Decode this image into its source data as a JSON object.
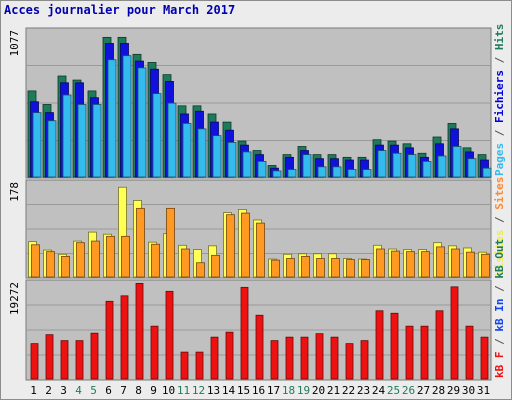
{
  "title": "Acces journalier pour March 2017",
  "chart_data": [
    {
      "type": "bar",
      "panel": "top",
      "y_tick_label": "1077",
      "ylim": [
        0,
        1077
      ],
      "grid": true,
      "categories": [
        "1",
        "2",
        "3",
        "4",
        "5",
        "6",
        "7",
        "8",
        "9",
        "10",
        "11",
        "12",
        "13",
        "14",
        "15",
        "16",
        "17",
        "18",
        "19",
        "20",
        "21",
        "22",
        "23",
        "24",
        "25",
        "26",
        "27",
        "28",
        "29",
        "30",
        "31"
      ],
      "weekend_days": [
        "4",
        "5",
        "11",
        "12",
        "18",
        "19",
        "25",
        "26"
      ],
      "axis_title": [
        {
          "text": "Pages",
          "color": "#33bbee"
        },
        {
          "text": " / ",
          "color": "#555555"
        },
        {
          "text": "Fichiers",
          "color": "#0000dd"
        },
        {
          "text": " / ",
          "color": "#555555"
        },
        {
          "text": "Hits",
          "color": "#1e7b5a"
        }
      ],
      "series": [
        {
          "color": "#1e7b5a",
          "values": [
            635,
            535,
            745,
            715,
            635,
            1030,
            1030,
            905,
            845,
            755,
            525,
            525,
            465,
            405,
            265,
            195,
            85,
            165,
            225,
            165,
            165,
            145,
            145,
            275,
            265,
            245,
            175,
            295,
            395,
            215,
            165
          ]
        },
        {
          "color": "#1111dd",
          "values": [
            555,
            475,
            695,
            695,
            585,
            985,
            985,
            855,
            795,
            705,
            465,
            485,
            405,
            345,
            235,
            165,
            65,
            145,
            195,
            135,
            135,
            125,
            125,
            235,
            235,
            215,
            145,
            245,
            355,
            185,
            125
          ]
        },
        {
          "color": "#33bbee",
          "values": [
            475,
            415,
            605,
            535,
            535,
            865,
            895,
            805,
            615,
            545,
            395,
            355,
            305,
            255,
            185,
            115,
            45,
            55,
            165,
            75,
            75,
            55,
            55,
            195,
            175,
            165,
            115,
            155,
            225,
            135,
            65
          ]
        }
      ]
    },
    {
      "type": "bar",
      "panel": "middle",
      "y_tick_label": "178",
      "ylim": [
        0,
        178
      ],
      "grid": true,
      "axis_title": [
        {
          "text": "Visites",
          "color": "#eeee44"
        },
        {
          "text": " / ",
          "color": "#555555"
        },
        {
          "text": "Sites",
          "color": "#ff8833"
        }
      ],
      "series": [
        {
          "color": "#ffff55",
          "values": [
            67,
            51,
            43,
            68,
            85,
            81,
            170,
            145,
            66,
            82,
            60,
            52,
            59,
            122,
            128,
            108,
            34,
            43,
            44,
            44,
            44,
            35,
            34,
            60,
            53,
            52,
            52,
            65,
            59,
            55,
            47
          ]
        },
        {
          "color": "#ff9922",
          "values": [
            61,
            48,
            39,
            65,
            68,
            77,
            77,
            130,
            62,
            130,
            53,
            27,
            41,
            118,
            121,
            102,
            32,
            35,
            39,
            35,
            35,
            33,
            33,
            53,
            49,
            48,
            48,
            57,
            53,
            47,
            43
          ]
        }
      ]
    },
    {
      "type": "bar",
      "panel": "bottom",
      "y_tick_label": "19272",
      "ylim": [
        0,
        19272
      ],
      "grid": true,
      "axis_title": [
        {
          "text": "kB F",
          "color": "#ee1111"
        },
        {
          "text": " / ",
          "color": "#555555"
        },
        {
          "text": "kB In",
          "color": "#1144ee"
        },
        {
          "text": " / ",
          "color": "#555555"
        },
        {
          "text": "kB Out",
          "color": "#1e7b5a"
        }
      ],
      "series": [
        {
          "color": "#ee1111",
          "values": [
            7100,
            8900,
            7700,
            7700,
            9200,
            15600,
            16700,
            19200,
            10600,
            17600,
            5400,
            5400,
            8400,
            9400,
            18400,
            12800,
            7700,
            8400,
            8400,
            9100,
            8400,
            7100,
            7700,
            13700,
            13200,
            10600,
            10600,
            13700,
            18500,
            10600,
            8400
          ]
        }
      ]
    }
  ]
}
